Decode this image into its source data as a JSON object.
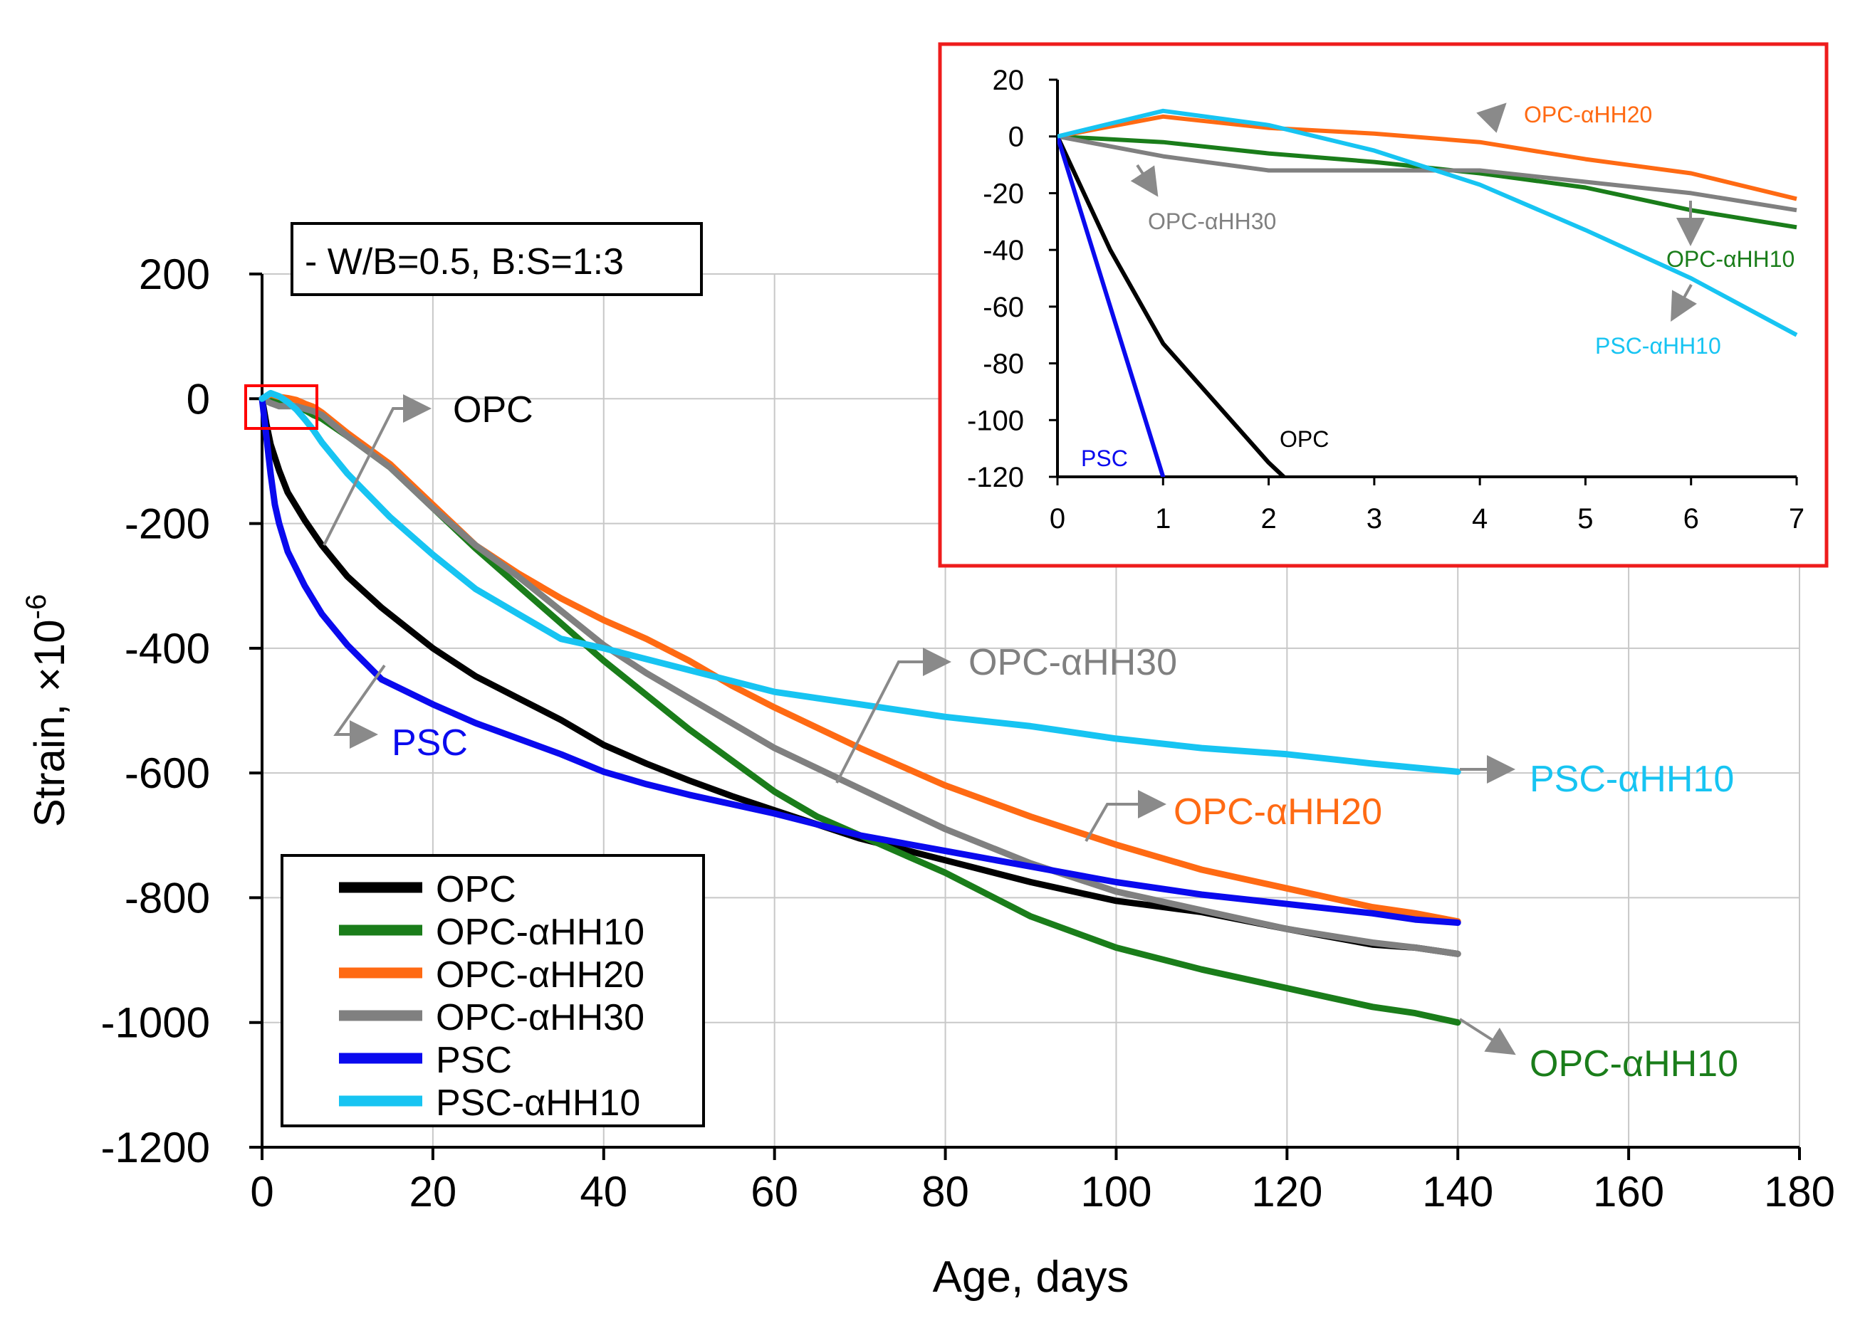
{
  "chart_data": [
    {
      "id": "main",
      "type": "line",
      "title": "",
      "xlabel": "Age, days",
      "ylabel_base": "Strain, ×10",
      "ylabel_exp": "-6",
      "xlim": [
        0,
        180
      ],
      "ylim": [
        -1200,
        200
      ],
      "xticks": [
        0,
        20,
        40,
        60,
        80,
        100,
        120,
        140,
        160,
        180
      ],
      "yticks": [
        200,
        0,
        -200,
        -400,
        -600,
        -800,
        -1000,
        -1200
      ],
      "grid": true,
      "condition_note": "- W/B=0.5, B:S=1:3",
      "legend_position": "bottom-left",
      "legend": [
        "OPC",
        "OPC-αHH10",
        "OPC-αHH20",
        "OPC-αHH30",
        "PSC",
        "PSC-αHH10"
      ],
      "series": [
        {
          "name": "OPC",
          "color": "#000000",
          "x": [
            0,
            0.5,
            1,
            2,
            3,
            5,
            7,
            10,
            14,
            20,
            25,
            30,
            35,
            40,
            45,
            50,
            55,
            60,
            70,
            80,
            90,
            100,
            110,
            120,
            130,
            135,
            140
          ],
          "y": [
            0,
            -40,
            -73,
            -115,
            -150,
            -195,
            -235,
            -285,
            -335,
            -400,
            -445,
            -480,
            -515,
            -555,
            -585,
            -612,
            -637,
            -660,
            -705,
            -740,
            -775,
            -805,
            -823,
            -850,
            -875,
            -880,
            -890
          ]
        },
        {
          "name": "OPC-αHH10",
          "color": "#1a7d1a",
          "x": [
            0,
            1,
            2,
            3,
            4,
            5,
            6,
            7,
            10,
            15,
            20,
            25,
            30,
            35,
            40,
            45,
            50,
            55,
            60,
            65,
            70,
            80,
            90,
            100,
            110,
            120,
            125,
            130,
            135,
            140
          ],
          "y": [
            0,
            -2,
            -6,
            -9,
            -13,
            -18,
            -26,
            -32,
            -60,
            -110,
            -175,
            -240,
            -300,
            -360,
            -420,
            -475,
            -530,
            -580,
            -630,
            -670,
            -700,
            -760,
            -830,
            -880,
            -915,
            -945,
            -960,
            -975,
            -985,
            -1000
          ]
        },
        {
          "name": "OPC-αHH20",
          "color": "#ff6a13",
          "x": [
            0,
            1,
            2,
            3,
            4,
            5,
            6,
            7,
            10,
            15,
            20,
            25,
            30,
            35,
            40,
            45,
            50,
            55,
            60,
            70,
            80,
            90,
            100,
            110,
            120,
            130,
            135,
            140
          ],
          "y": [
            0,
            7,
            3,
            1,
            -2,
            -8,
            -13,
            -22,
            -55,
            -105,
            -170,
            -235,
            -280,
            -320,
            -355,
            -385,
            -420,
            -460,
            -495,
            -560,
            -620,
            -670,
            -715,
            -755,
            -785,
            -815,
            -825,
            -838
          ]
        },
        {
          "name": "OPC-αHH30",
          "color": "#808080",
          "x": [
            0,
            1,
            2,
            3,
            4,
            5,
            6,
            7,
            10,
            15,
            20,
            25,
            30,
            35,
            40,
            45,
            50,
            55,
            60,
            70,
            80,
            90,
            100,
            110,
            120,
            130,
            135,
            140
          ],
          "y": [
            0,
            -7,
            -12,
            -12,
            -12,
            -16,
            -20,
            -26,
            -60,
            -110,
            -175,
            -235,
            -285,
            -340,
            -395,
            -440,
            -480,
            -520,
            -560,
            -625,
            -690,
            -745,
            -790,
            -820,
            -850,
            -872,
            -880,
            -890
          ]
        },
        {
          "name": "PSC",
          "color": "#0a0aee",
          "x": [
            0,
            0.5,
            1,
            1.5,
            2,
            3,
            5,
            7,
            10,
            14,
            20,
            25,
            30,
            35,
            40,
            45,
            50,
            60,
            70,
            80,
            90,
            100,
            110,
            120,
            130,
            135,
            140
          ],
          "y": [
            0,
            -60,
            -120,
            -170,
            -200,
            -245,
            -300,
            -345,
            -395,
            -450,
            -490,
            -520,
            -545,
            -570,
            -598,
            -618,
            -635,
            -665,
            -700,
            -725,
            -750,
            -775,
            -795,
            -810,
            -825,
            -835,
            -840
          ]
        },
        {
          "name": "PSC-αHH10",
          "color": "#17c4f2",
          "x": [
            0,
            1,
            2,
            3,
            4,
            5,
            6,
            7,
            10,
            15,
            20,
            25,
            30,
            35,
            40,
            50,
            60,
            70,
            80,
            90,
            100,
            110,
            120,
            130,
            140
          ],
          "y": [
            0,
            9,
            4,
            -5,
            -17,
            -33,
            -50,
            -70,
            -120,
            -190,
            -250,
            -305,
            -345,
            -385,
            -400,
            -435,
            -470,
            -490,
            -510,
            -525,
            -545,
            -560,
            -570,
            -585,
            -598
          ]
        }
      ],
      "annotations": [
        {
          "text": "OPC",
          "series": "OPC"
        },
        {
          "text": "PSC",
          "series": "PSC"
        },
        {
          "text": "OPC-αHH30",
          "series": "OPC-αHH30"
        },
        {
          "text": "PSC-αHH10",
          "series": "PSC-αHH10"
        },
        {
          "text": "OPC-αHH20",
          "series": "OPC-αHH20"
        },
        {
          "text": "OPC-αHH10",
          "series": "OPC-αHH10"
        }
      ]
    },
    {
      "id": "inset",
      "type": "line",
      "title": "",
      "xlim": [
        0,
        7
      ],
      "ylim": [
        -120,
        20
      ],
      "xticks": [
        0,
        1,
        2,
        3,
        4,
        5,
        6,
        7
      ],
      "yticks": [
        20,
        0,
        -20,
        -40,
        -60,
        -80,
        -100,
        -120
      ],
      "grid": false,
      "annotations": [
        {
          "text": "OPC-αHH20",
          "series": "OPC-αHH20"
        },
        {
          "text": "OPC-αHH30",
          "series": "OPC-αHH30"
        },
        {
          "text": "OPC-αHH10",
          "series": "OPC-αHH10"
        },
        {
          "text": "PSC-αHH10",
          "series": "PSC-αHH10"
        },
        {
          "text": "OPC",
          "series": "OPC"
        },
        {
          "text": "PSC",
          "series": "PSC"
        }
      ]
    }
  ]
}
